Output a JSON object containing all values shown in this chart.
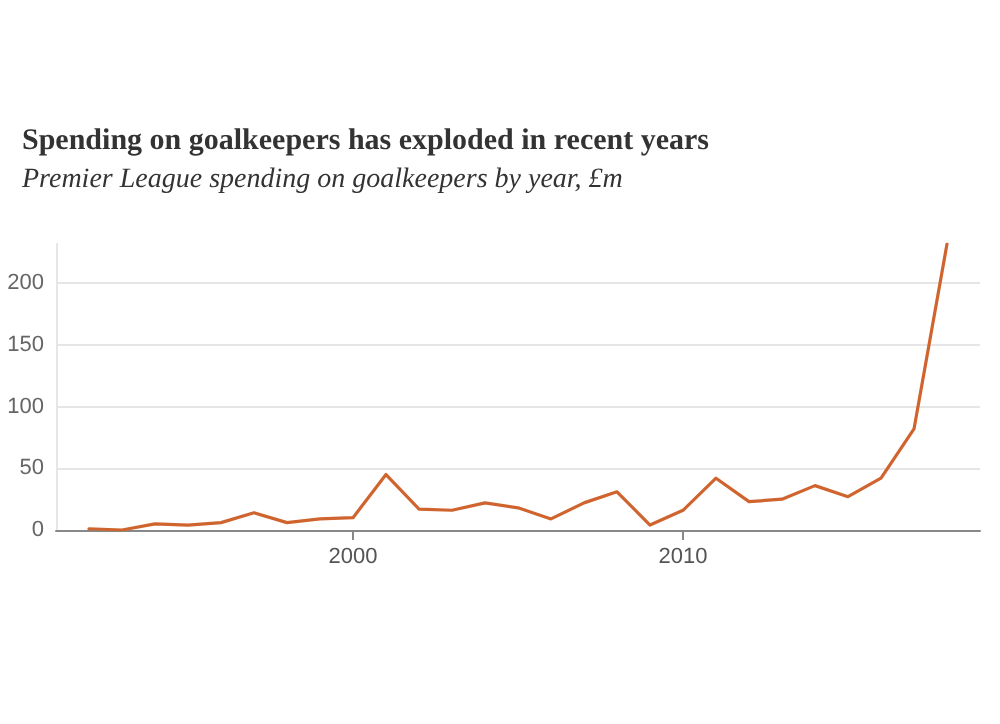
{
  "chart_data": {
    "type": "line",
    "title": "Spending on goalkeepers has exploded in recent years",
    "subtitle": "Premier League spending on goalkeepers by year, £m",
    "x": [
      1992,
      1993,
      1994,
      1995,
      1996,
      1997,
      1998,
      1999,
      2000,
      2001,
      2002,
      2003,
      2004,
      2005,
      2006,
      2007,
      2008,
      2009,
      2010,
      2011,
      2012,
      2013,
      2014,
      2015,
      2016,
      2017,
      2018
    ],
    "series": [
      {
        "color": "#d0642f",
        "values": [
          1,
          0,
          5,
          4,
          6,
          14,
          6,
          9,
          10,
          45,
          17,
          16,
          22,
          18,
          9,
          22,
          31,
          4,
          16,
          42,
          23,
          25,
          36,
          27,
          42,
          82,
          232
        ]
      }
    ],
    "xlim": [
      1991,
      2019
    ],
    "ylim": [
      0,
      232
    ],
    "xticks": [
      2000,
      2010
    ],
    "yticks": [
      0,
      50,
      100,
      150,
      200
    ],
    "grid": "y",
    "marker": "none",
    "line_style": "solid"
  }
}
